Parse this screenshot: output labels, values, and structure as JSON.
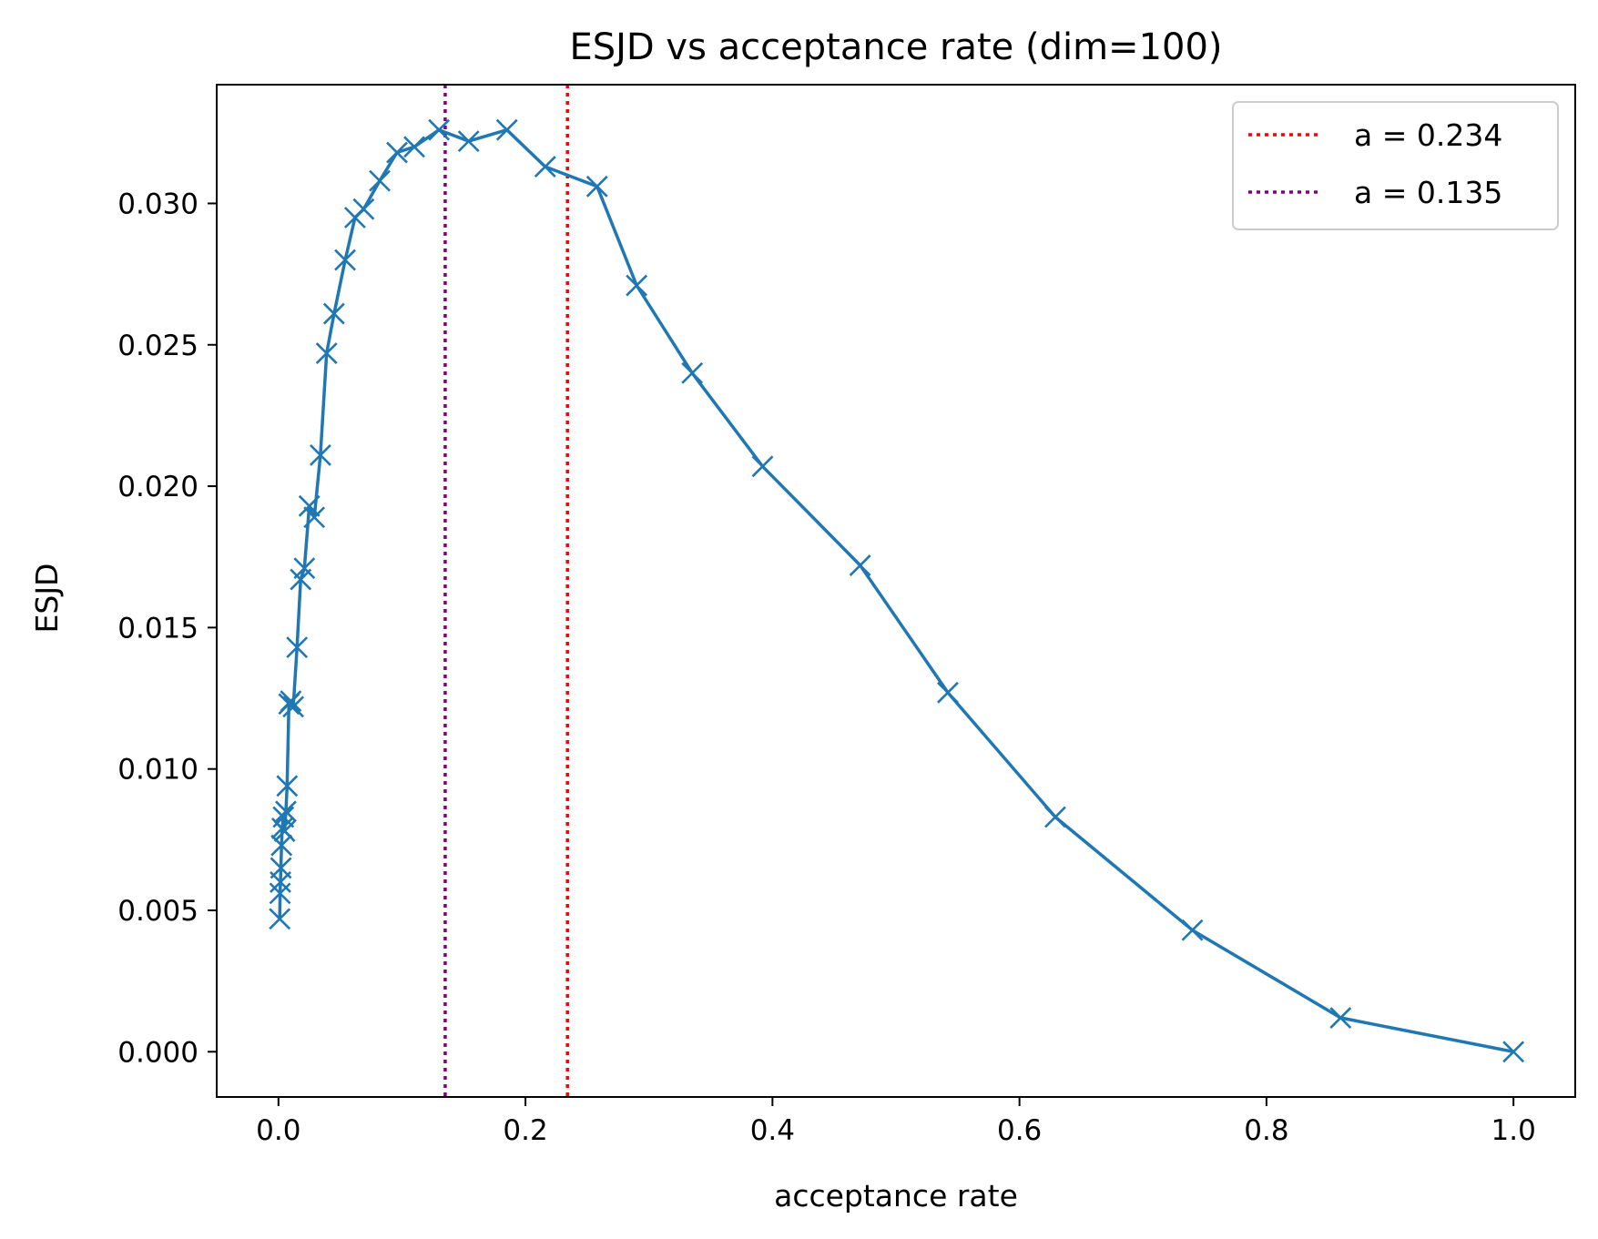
{
  "chart_data": {
    "type": "line",
    "title": "ESJD vs acceptance rate (dim=100)",
    "xlabel": "acceptance rate",
    "ylabel": "ESJD",
    "xlim": [
      -0.05,
      1.05
    ],
    "ylim": [
      -0.0016,
      0.0342
    ],
    "xticks": [
      0.0,
      0.2,
      0.4,
      0.6,
      0.8,
      1.0
    ],
    "xtick_labels": [
      "0.0",
      "0.2",
      "0.4",
      "0.6",
      "0.8",
      "1.0"
    ],
    "yticks": [
      0.0,
      0.005,
      0.01,
      0.015,
      0.02,
      0.025,
      0.03
    ],
    "ytick_labels": [
      "0.000",
      "0.005",
      "0.010",
      "0.015",
      "0.020",
      "0.025",
      "0.030"
    ],
    "grid": false,
    "legend_position": "top-right",
    "series": [
      {
        "name": "ESJD",
        "color": "#1f77b4",
        "marker": "x",
        "x": [
          0.001,
          0.0013,
          0.0016,
          0.002,
          0.0025,
          0.003,
          0.004,
          0.005,
          0.006,
          0.007,
          0.0085,
          0.01,
          0.012,
          0.015,
          0.018,
          0.021,
          0.025,
          0.029,
          0.034,
          0.039,
          0.045,
          0.054,
          0.062,
          0.069,
          0.082,
          0.096,
          0.11,
          0.13,
          0.154,
          0.185,
          0.216,
          0.258,
          0.29,
          0.335,
          0.392,
          0.471,
          0.542,
          0.629,
          0.74,
          0.86,
          1.0
        ],
        "y": [
          0.0047,
          0.0056,
          0.006,
          0.0065,
          0.0073,
          0.0079,
          0.0083,
          0.0078,
          0.0085,
          0.0094,
          0.0123,
          0.0124,
          0.0122,
          0.0143,
          0.0167,
          0.0171,
          0.0193,
          0.0189,
          0.0211,
          0.0247,
          0.0261,
          0.028,
          0.0295,
          0.0298,
          0.0308,
          0.0318,
          0.032,
          0.0326,
          0.0322,
          0.0326,
          0.0313,
          0.0306,
          0.0271,
          0.024,
          0.0207,
          0.0172,
          0.0127,
          0.0083,
          0.0043,
          0.0012,
          0.0
        ]
      }
    ],
    "vlines": [
      {
        "x": 0.234,
        "label": "a = 0.234",
        "color": "#ff0000",
        "style": "dotted"
      },
      {
        "x": 0.135,
        "label": "a = 0.135",
        "color": "#800080",
        "style": "dotted"
      }
    ]
  }
}
